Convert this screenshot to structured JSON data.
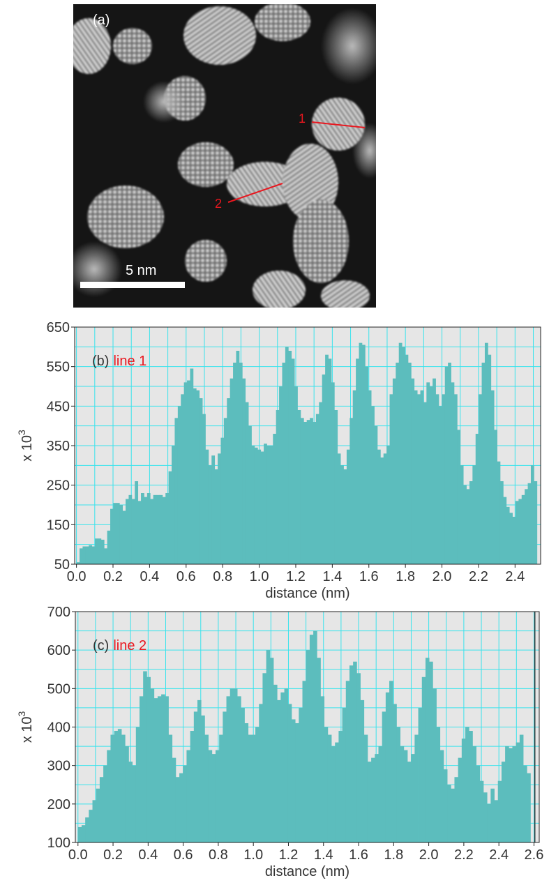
{
  "micrograph": {
    "panel_label": "(a)",
    "scale_bar_label": "5 nm",
    "line_labels": [
      "1",
      "2"
    ]
  },
  "colors": {
    "bar_fill": "#5cbdbd",
    "plot_bg": "#e6e6e6",
    "grid": "#39e3ec",
    "red_label": "#e8171f"
  },
  "chart_data": [
    {
      "type": "bar",
      "panel_label": "(b)",
      "series_label": "line 1",
      "xlabel": "distance (nm)",
      "ylabel_prefix": "x 10",
      "ylabel_exponent": "3",
      "xlim": [
        -0.01,
        2.54
      ],
      "ylim": [
        50,
        650
      ],
      "xticks": [
        "0.0",
        "0.2",
        "0.4",
        "0.6",
        "0.8",
        "1.0",
        "1.2",
        "1.4",
        "1.6",
        "1.8",
        "2.0",
        "2.2",
        "2.4"
      ],
      "yticks": [
        "50",
        "150",
        "250",
        "350",
        "450",
        "550",
        "650"
      ],
      "x_start": 0.0,
      "x_step": 0.0125,
      "values": [
        55,
        90,
        95,
        95,
        98,
        95,
        115,
        115,
        112,
        90,
        135,
        190,
        205,
        205,
        200,
        185,
        215,
        225,
        215,
        260,
        210,
        230,
        220,
        230,
        215,
        225,
        225,
        225,
        220,
        230,
        285,
        350,
        420,
        450,
        480,
        510,
        515,
        545,
        495,
        490,
        470,
        430,
        340,
        300,
        325,
        290,
        330,
        370,
        420,
        470,
        520,
        560,
        590,
        560,
        520,
        460,
        400,
        350,
        345,
        340,
        335,
        355,
        350,
        350,
        380,
        440,
        500,
        560,
        600,
        590,
        570,
        500,
        440,
        420,
        410,
        415,
        420,
        410,
        430,
        460,
        530,
        580,
        570,
        510,
        440,
        330,
        300,
        290,
        340,
        420,
        490,
        570,
        610,
        605,
        550,
        490,
        450,
        400,
        340,
        320,
        330,
        350,
        480,
        520,
        560,
        610,
        600,
        580,
        560,
        520,
        490,
        480,
        490,
        460,
        510,
        500,
        520,
        480,
        450,
        480,
        550,
        560,
        510,
        480,
        390,
        300,
        250,
        240,
        260,
        300,
        380,
        480,
        560,
        610,
        580,
        490,
        390,
        310,
        260,
        220,
        195,
        180,
        170,
        210,
        215,
        225,
        240,
        255,
        300,
        260
      ],
      "bar_end_x": 2.52
    },
    {
      "type": "bar",
      "panel_label": "(c)",
      "series_label": "line 2",
      "xlabel": "distance (nm)",
      "ylabel_prefix": "x 10",
      "ylabel_exponent": "3",
      "xlim": [
        -0.015,
        2.63
      ],
      "ylim": [
        100,
        700
      ],
      "xticks": [
        "0.0",
        "0.2",
        "0.4",
        "0.6",
        "0.8",
        "1.0",
        "1.2",
        "1.4",
        "1.6",
        "1.8",
        "2.0",
        "2.2",
        "2.4",
        "2.6"
      ],
      "yticks": [
        "100",
        "200",
        "300",
        "400",
        "500",
        "600",
        "700"
      ],
      "x_start": 0.0,
      "x_step": 0.0125,
      "values": [
        140,
        145,
        165,
        185,
        210,
        240,
        270,
        300,
        340,
        380,
        390,
        395,
        380,
        350,
        310,
        300,
        400,
        480,
        545,
        530,
        500,
        475,
        480,
        485,
        480,
        380,
        320,
        270,
        280,
        300,
        340,
        390,
        440,
        470,
        430,
        380,
        340,
        330,
        340,
        380,
        440,
        480,
        500,
        500,
        480,
        450,
        410,
        380,
        380,
        400,
        460,
        540,
        600,
        580,
        510,
        470,
        490,
        500,
        460,
        420,
        410,
        450,
        520,
        600,
        640,
        650,
        580,
        480,
        400,
        380,
        350,
        360,
        390,
        450,
        520,
        560,
        570,
        540,
        470,
        380,
        310,
        320,
        330,
        350,
        440,
        490,
        520,
        460,
        400,
        350,
        340,
        310,
        330,
        380,
        450,
        530,
        580,
        570,
        500,
        400,
        340,
        290,
        250,
        240,
        270,
        320,
        370,
        400,
        390,
        350,
        300,
        260,
        230,
        200,
        240,
        210,
        260,
        310,
        350,
        345,
        350,
        360,
        380,
        300,
        280
      ],
      "bar_end_x": 2.58,
      "right_edge_line_x": 2.605
    }
  ]
}
